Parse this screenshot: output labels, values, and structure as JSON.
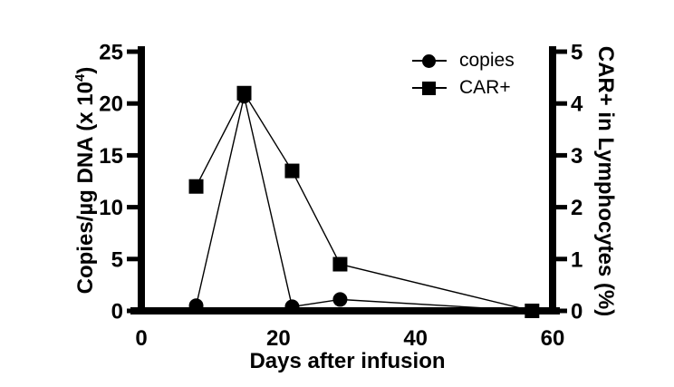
{
  "chart_data": {
    "type": "line",
    "title": "",
    "xlabel": "Days after infusion",
    "xlim": [
      0,
      60
    ],
    "xticks": [
      0,
      20,
      40,
      60
    ],
    "x": [
      8,
      15,
      22,
      29,
      57
    ],
    "left_axis": {
      "label": "Copies/µg DNA (x 10⁴)",
      "label_pre": "Copies/µg DNA (x 10",
      "label_sup": "4",
      "label_post": ")",
      "lim": [
        0,
        25
      ],
      "ticks": [
        0,
        5,
        10,
        15,
        20,
        25
      ]
    },
    "right_axis": {
      "label": "CAR+ in Lymphocytes (%)",
      "lim": [
        0,
        5
      ],
      "ticks": [
        0,
        1,
        2,
        3,
        4,
        5
      ]
    },
    "series": [
      {
        "name": "copies",
        "axis": "left",
        "marker": "circle",
        "color": "#000000",
        "values": [
          0.5,
          20.7,
          0.4,
          1.1,
          0
        ]
      },
      {
        "name": "CAR+",
        "axis": "right",
        "marker": "square",
        "color": "#000000",
        "values": [
          2.4,
          4.2,
          2.7,
          0.9,
          0
        ]
      }
    ],
    "grid": false,
    "legend_position": "inside-top-right",
    "background": "#ffffff",
    "axis_color": "#000000"
  }
}
